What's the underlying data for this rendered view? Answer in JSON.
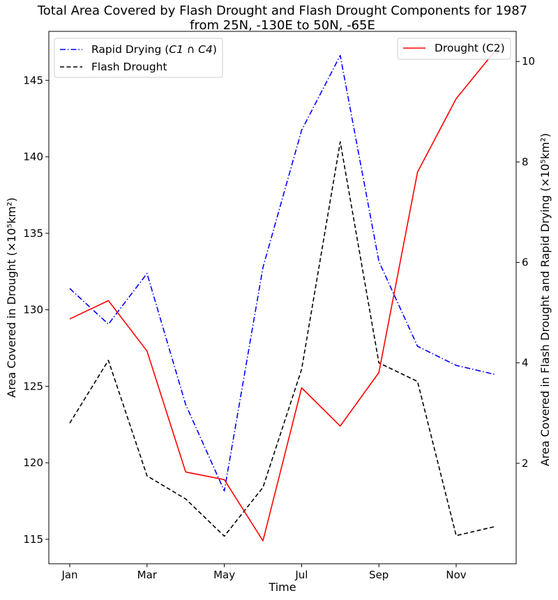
{
  "chart_data": {
    "type": "line",
    "title": [
      "Total Area Covered by Flash Drought and Flash Drought Components for 1987",
      "from 25N, -130E to 50N, -65E"
    ],
    "xlabel": "Time",
    "ylabel_left": "Area Covered in Drought (×10⁵km²)",
    "ylabel_right": "Area Covered in Flash Drought and Rapid Drying (×10⁵km²)",
    "x": [
      "Jan",
      "Feb",
      "Mar",
      "Apr",
      "May",
      "Jun",
      "Jul",
      "Aug",
      "Sep",
      "Oct",
      "Nov",
      "Dec"
    ],
    "x_tick_labels": [
      "Jan",
      "Mar",
      "May",
      "Jul",
      "Sep",
      "Nov"
    ],
    "ylim_left": [
      113.4,
      148.2
    ],
    "ylim_right": [
      0.0,
      10.6
    ],
    "yticks_left": [
      "115",
      "120",
      "125",
      "130",
      "135",
      "140",
      "145"
    ],
    "yticks_right": [
      "2",
      "4",
      "6",
      "8",
      "10"
    ],
    "grid": false,
    "series": [
      {
        "name": "Rapid Drying (C1 ∩ C4)",
        "axis": "right",
        "color": "#0000ff",
        "style": "dashdot",
        "values": [
          5.48,
          4.77,
          5.78,
          3.17,
          1.45,
          5.9,
          8.63,
          10.12,
          6.02,
          4.33,
          3.95,
          3.77
        ]
      },
      {
        "name": "Flash Drought",
        "axis": "right",
        "color": "#000000",
        "style": "dashed",
        "values": [
          2.8,
          4.05,
          1.75,
          1.29,
          0.55,
          1.52,
          3.87,
          8.4,
          4.0,
          3.63,
          0.56,
          0.74
        ]
      },
      {
        "name": "Drought (C2)",
        "axis": "left",
        "color": "#ff0000",
        "style": "solid",
        "values": [
          129.4,
          130.6,
          127.3,
          119.4,
          118.9,
          114.9,
          124.9,
          122.4,
          125.9,
          139.0,
          143.8,
          146.9
        ]
      }
    ],
    "legend_left": {
      "placement": "upper-left",
      "entries": [
        {
          "label_main": "Rapid Drying (",
          "label_math": "C1 ∩ C4",
          "label_tail": ")",
          "color": "#0000ff",
          "style": "dashdot"
        },
        {
          "label_main": "Flash Drought",
          "label_math": "",
          "label_tail": "",
          "color": "#000000",
          "style": "dashed"
        }
      ]
    },
    "legend_right": {
      "placement": "upper-right",
      "entries": [
        {
          "label_main": "Drought (C2)",
          "label_math": "",
          "label_tail": "",
          "color": "#ff0000",
          "style": "solid"
        }
      ]
    }
  }
}
